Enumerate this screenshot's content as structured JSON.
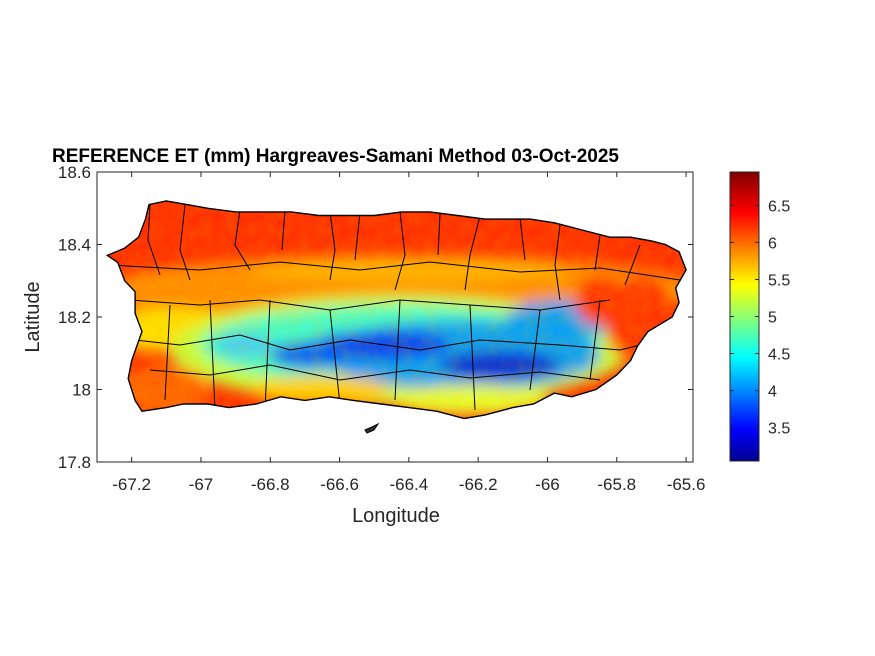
{
  "title": "REFERENCE ET (mm) Hargreaves-Samani Method  03-Oct-2025",
  "x_axis": {
    "label": "Longitude",
    "range": [
      -67.3,
      -65.58
    ],
    "ticks": [
      -67.2,
      -67,
      -66.8,
      -66.6,
      -66.4,
      -66.2,
      -66,
      -65.8,
      -65.6
    ],
    "tick_labels": [
      "-67.2",
      "-67",
      "-66.8",
      "-66.6",
      "-66.4",
      "-66.2",
      "-66",
      "-65.8",
      "-65.6"
    ]
  },
  "y_axis": {
    "label": "Latitude",
    "range": [
      17.8,
      18.6
    ],
    "ticks": [
      17.8,
      18,
      18.2,
      18.4,
      18.6
    ],
    "tick_labels": [
      "17.8",
      "18",
      "18.2",
      "18.4",
      "18.6"
    ]
  },
  "colorbar": {
    "colormap": "jet",
    "range": [
      3.05,
      6.95
    ],
    "ticks": [
      3.5,
      4,
      4.5,
      5,
      5.5,
      6,
      6.5
    ],
    "tick_labels": [
      "3.5",
      "4",
      "4.5",
      "5",
      "5.5",
      "6",
      "6.5"
    ],
    "position": "right"
  },
  "chart_data": {
    "type": "heatmap",
    "title": "REFERENCE ET (mm) Hargreaves-Samani Method  03-Oct-2025",
    "xlabel": "Longitude",
    "ylabel": "Latitude",
    "xlim": [
      -67.3,
      -65.58
    ],
    "ylim": [
      17.8,
      18.6
    ],
    "colorbar_range": [
      3.05,
      6.95
    ],
    "region": "Puerto Rico municipalities",
    "grid": false,
    "legend": "colorbar right",
    "value_field_samples": [
      {
        "lon": -67.05,
        "lat": 18.45,
        "value": 6.6
      },
      {
        "lon": -66.6,
        "lat": 18.44,
        "value": 6.4
      },
      {
        "lon": -66.2,
        "lat": 18.42,
        "value": 6.3
      },
      {
        "lon": -65.8,
        "lat": 18.35,
        "value": 6.2
      },
      {
        "lon": -67.15,
        "lat": 18.05,
        "value": 6.4
      },
      {
        "lon": -66.5,
        "lat": 18.15,
        "value": 3.8
      },
      {
        "lon": -66.1,
        "lat": 18.08,
        "value": 3.5
      },
      {
        "lon": -66.9,
        "lat": 18.12,
        "value": 5.0
      },
      {
        "lon": -66.3,
        "lat": 18.25,
        "value": 5.0
      },
      {
        "lon": -66.4,
        "lat": 17.98,
        "value": 5.5
      },
      {
        "lon": -65.85,
        "lat": 18.15,
        "value": 6.2
      }
    ]
  }
}
